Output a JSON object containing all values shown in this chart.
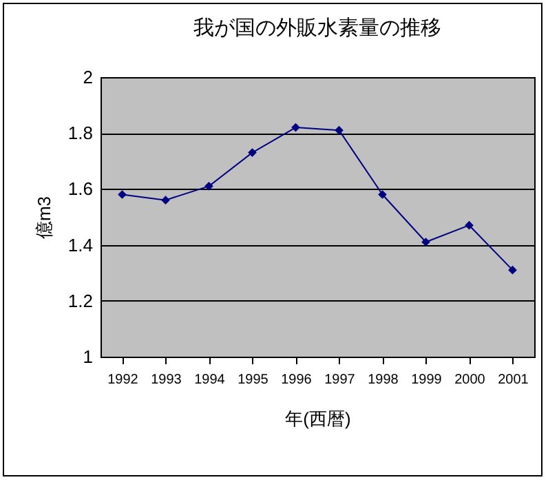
{
  "chart_data": {
    "type": "line",
    "title": "我が国の外販水素量の推移",
    "xlabel": "年(西暦)",
    "ylabel": "億m3",
    "categories": [
      "1992",
      "1993",
      "1994",
      "1995",
      "1996",
      "1997",
      "1998",
      "1999",
      "2000",
      "2001"
    ],
    "series": [
      {
        "color": "#000080",
        "values": [
          1.58,
          1.56,
          1.61,
          1.73,
          1.82,
          1.81,
          1.58,
          1.41,
          1.47,
          1.31
        ]
      }
    ],
    "ylim": [
      1,
      2
    ],
    "yticks": [
      1,
      1.2,
      1.4,
      1.6,
      1.8,
      2
    ],
    "grid": "y",
    "marker": "diamond",
    "legend": false
  }
}
